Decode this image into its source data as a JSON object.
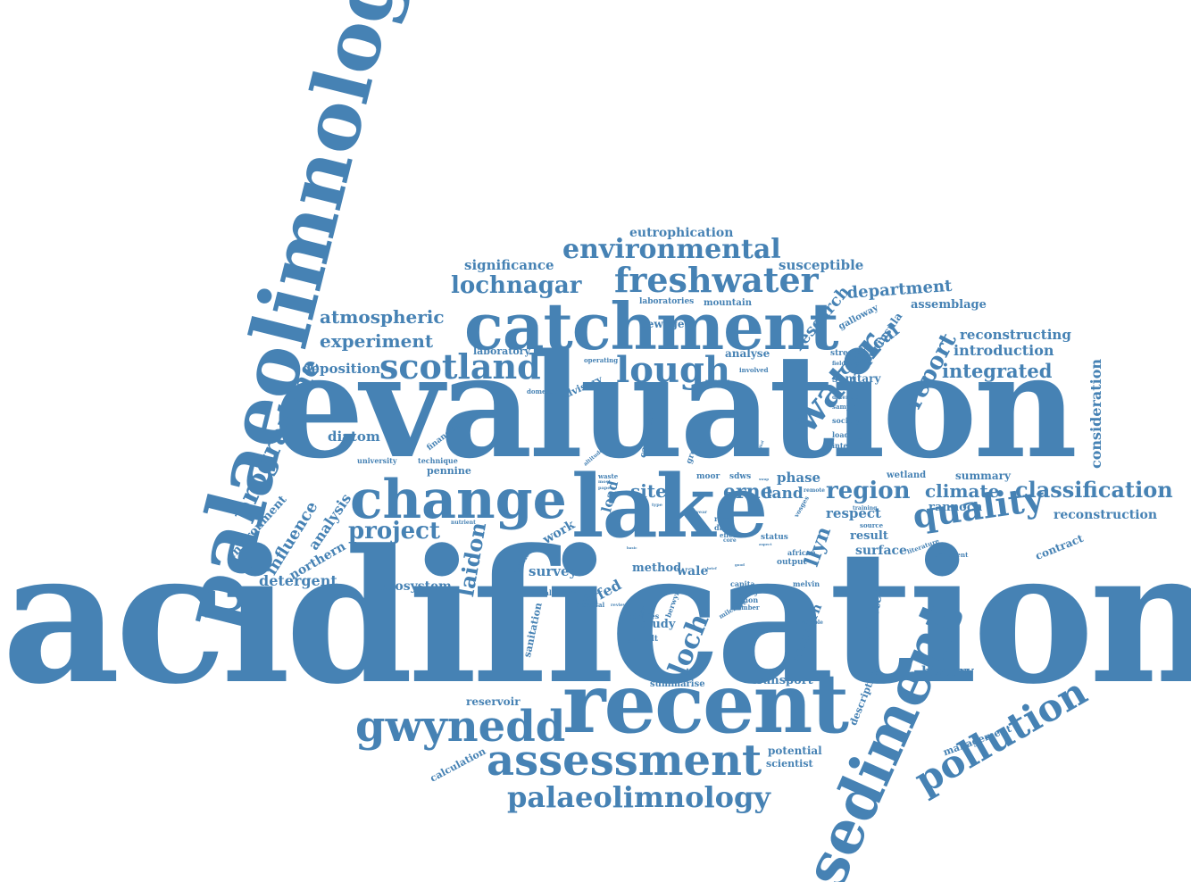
{
  "color": "#4682b4",
  "words": [
    {
      "text": "acidification",
      "size": 4
    },
    {
      "text": "evaluation",
      "size": 4
    },
    {
      "text": "palaeolimnological",
      "size": 3
    },
    {
      "text": "catchment",
      "size": 3
    },
    {
      "text": "lake",
      "size": 3
    },
    {
      "text": "recent",
      "size": 3
    },
    {
      "text": "change",
      "size": 3
    },
    {
      "text": "sediment",
      "size": 3
    },
    {
      "text": "freshwater",
      "size": 2
    },
    {
      "text": "environmental",
      "size": 2
    },
    {
      "text": "scotland",
      "size": 2
    },
    {
      "text": "lough",
      "size": 2
    },
    {
      "text": "water",
      "size": 2
    },
    {
      "text": "quality",
      "size": 2
    },
    {
      "text": "gwynedd",
      "size": 2
    },
    {
      "text": "assessment",
      "size": 2
    },
    {
      "text": "pollution",
      "size": 2
    },
    {
      "text": "palaeolimnology",
      "size": 2
    },
    {
      "text": "programme",
      "size": 2
    },
    {
      "text": "region",
      "size": 2
    },
    {
      "text": "classification",
      "size": 2
    },
    {
      "text": "lochnagar",
      "size": 2
    },
    {
      "text": "project",
      "size": 2
    },
    {
      "text": "report",
      "size": 2
    },
    {
      "text": "loch",
      "size": 2
    },
    {
      "text": "laidon",
      "size": 2
    },
    {
      "text": "eutrophication",
      "size": 1
    },
    {
      "text": "significance",
      "size": 1
    },
    {
      "text": "susceptible",
      "size": 1
    },
    {
      "text": "department",
      "size": 1
    },
    {
      "text": "atmospheric",
      "size": 1
    },
    {
      "text": "experiment",
      "size": 1
    },
    {
      "text": "critical",
      "size": 1
    },
    {
      "text": "research",
      "size": 1
    },
    {
      "text": "deposition",
      "size": 1
    },
    {
      "text": "integrated",
      "size": 1
    },
    {
      "text": "introduction",
      "size": 1
    },
    {
      "text": "reconstructing",
      "size": 1
    },
    {
      "text": "assemblage",
      "size": 1
    },
    {
      "text": "consideration",
      "size": 1
    },
    {
      "text": "diatom",
      "size": 1
    },
    {
      "text": "climate",
      "size": 1
    },
    {
      "text": "erne",
      "size": 1
    },
    {
      "text": "site",
      "size": 1
    },
    {
      "text": "land",
      "size": 1
    },
    {
      "text": "phase",
      "size": 1
    },
    {
      "text": "summary",
      "size": 1
    },
    {
      "text": "rannoch",
      "size": 1
    },
    {
      "text": "reconstruction",
      "size": 1
    },
    {
      "text": "respect",
      "size": 1
    },
    {
      "text": "result",
      "size": 1
    },
    {
      "text": "surface",
      "size": 1
    },
    {
      "text": "contract",
      "size": 1
    },
    {
      "text": "influence",
      "size": 1
    },
    {
      "text": "analysis",
      "size": 1
    },
    {
      "text": "environment",
      "size": 1
    },
    {
      "text": "northern",
      "size": 1
    },
    {
      "text": "detergent",
      "size": 1
    },
    {
      "text": "ecosystem",
      "size": 1
    },
    {
      "text": "survey",
      "size": 1
    },
    {
      "text": "dyfed",
      "size": 1
    },
    {
      "text": "work",
      "size": 1
    },
    {
      "text": "method",
      "size": 1
    },
    {
      "text": "wale",
      "size": 1
    },
    {
      "text": "study",
      "size": 1
    },
    {
      "text": "llyn",
      "size": 1
    },
    {
      "text": "selected",
      "size": 1
    },
    {
      "text": "southern",
      "size": 1
    },
    {
      "text": "history",
      "size": 1
    },
    {
      "text": "management",
      "size": 1
    },
    {
      "text": "transport",
      "size": 1
    },
    {
      "text": "potential",
      "size": 1
    },
    {
      "text": "scientist",
      "size": 1
    },
    {
      "text": "reservoir",
      "size": 1
    },
    {
      "text": "calculation",
      "size": 1
    },
    {
      "text": "summarise",
      "size": 1
    },
    {
      "text": "description",
      "size": 1
    },
    {
      "text": "sanitation",
      "size": 1
    },
    {
      "text": "sewage",
      "size": 1
    },
    {
      "text": "analyse",
      "size": 1
    },
    {
      "text": "laboratory",
      "size": 1
    },
    {
      "text": "mountain",
      "size": 1
    },
    {
      "text": "laboratories",
      "size": 1
    },
    {
      "text": "galloway",
      "size": 1
    },
    {
      "text": "peninsula",
      "size": 1
    },
    {
      "text": "sanitary",
      "size": 1
    },
    {
      "text": "stream",
      "size": 1
    },
    {
      "text": "wetland",
      "size": 1
    },
    {
      "text": "pennine",
      "size": 1
    },
    {
      "text": "advisory",
      "size": 1
    },
    {
      "text": "operating",
      "size": 1
    },
    {
      "text": "domestic",
      "size": 1
    },
    {
      "text": "financial",
      "size": 1
    },
    {
      "text": "university",
      "size": 1
    },
    {
      "text": "technique",
      "size": 1
    },
    {
      "text": "cassarina",
      "size": 1
    },
    {
      "text": "group",
      "size": 1
    },
    {
      "text": "load",
      "size": 1
    },
    {
      "text": "utilised",
      "size": 1
    },
    {
      "text": "social",
      "size": 1
    },
    {
      "text": "young",
      "size": 1
    },
    {
      "text": "disposal",
      "size": 1
    },
    {
      "text": "studies",
      "size": 1
    },
    {
      "text": "gamalt",
      "size": 1
    },
    {
      "text": "berwyn",
      "size": 1
    },
    {
      "text": "milchere",
      "size": 1
    },
    {
      "text": "capita",
      "size": 1
    },
    {
      "text": "conwy",
      "size": 1
    },
    {
      "text": "gynon",
      "size": 1
    },
    {
      "text": "number",
      "size": 1
    },
    {
      "text": "melvin",
      "size": 1
    },
    {
      "text": "moor",
      "size": 1
    },
    {
      "text": "sdws",
      "size": 1
    },
    {
      "text": "rural",
      "size": 1
    },
    {
      "text": "data",
      "size": 1
    },
    {
      "text": "effect",
      "size": 1
    },
    {
      "text": "core",
      "size": 1
    },
    {
      "text": "status",
      "size": 1
    },
    {
      "text": "african",
      "size": 1
    },
    {
      "text": "output",
      "size": 1
    },
    {
      "text": "available",
      "size": 1
    },
    {
      "text": "remote",
      "size": 1
    },
    {
      "text": "training",
      "size": 1
    },
    {
      "text": "source",
      "size": 1
    },
    {
      "text": "literature",
      "size": 1
    },
    {
      "text": "treatment",
      "size": 1
    },
    {
      "text": "society",
      "size": 1
    },
    {
      "text": "loading",
      "size": 1
    },
    {
      "text": "interim",
      "size": 1
    },
    {
      "text": "different",
      "size": 1
    },
    {
      "text": "sample",
      "size": 1
    },
    {
      "text": "fieldwork",
      "size": 1
    },
    {
      "text": "involved",
      "size": 1
    },
    {
      "text": "vosges",
      "size": 1
    },
    {
      "text": "nutrient",
      "size": 1
    },
    {
      "text": "dalyn",
      "size": 1
    },
    {
      "text": "review",
      "size": 1
    },
    {
      "text": "waste",
      "size": 1
    },
    {
      "text": "altitude",
      "size": 1
    },
    {
      "text": "paper",
      "size": 1
    },
    {
      "text": "most",
      "size": 1
    },
    {
      "text": "type",
      "size": 1
    },
    {
      "text": "year",
      "size": 1
    },
    {
      "text": "swap",
      "size": 1
    },
    {
      "text": "aspect",
      "size": 1
    },
    {
      "text": "good",
      "size": 1
    },
    {
      "text": "brief",
      "size": 1
    },
    {
      "text": "baikal",
      "size": 1
    },
    {
      "text": "basic",
      "size": 1
    }
  ]
}
